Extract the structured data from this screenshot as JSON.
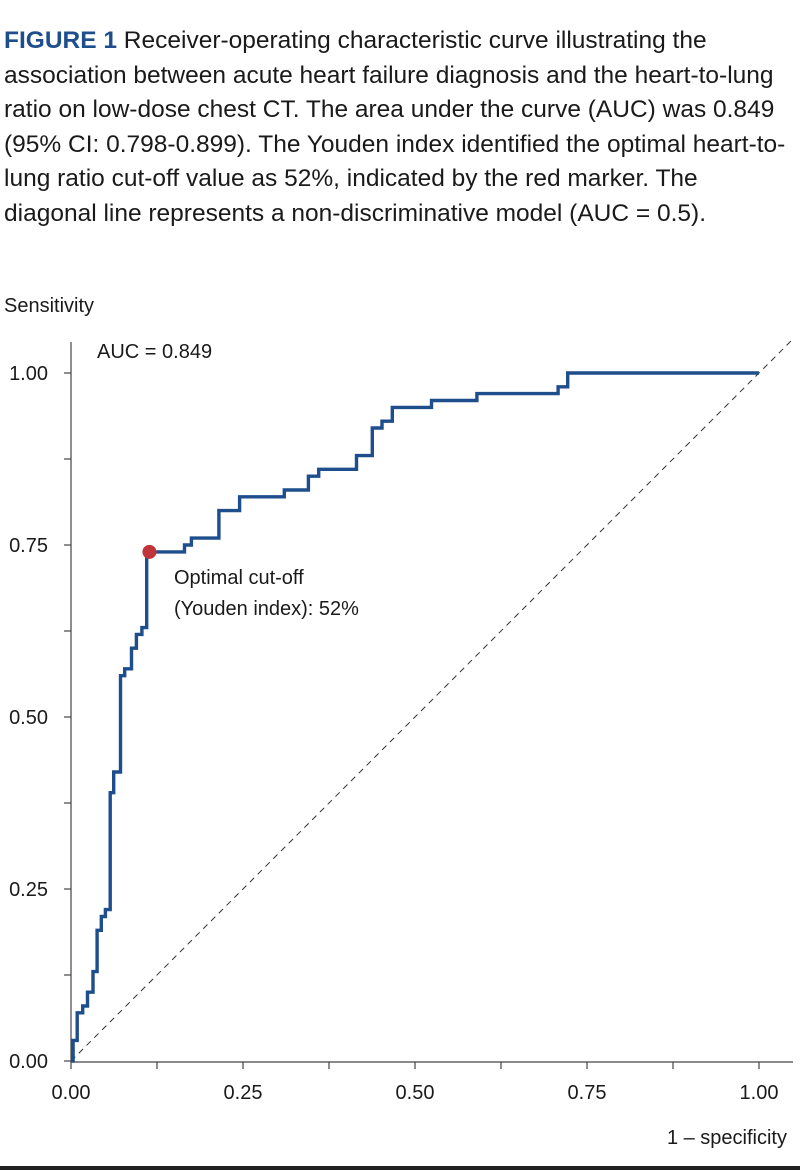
{
  "caption": {
    "label": "FIGURE 1",
    "text": " Receiver-operating characteristic curve illustrating the association between acute heart failure diagnosis and the heart-to-lung ratio on low-dose chest CT. The area under the curve (AUC) was 0.849 (95% CI: 0.798-0.899). The Youden index identified the optimal heart-to-lung ratio cut-off value as 52%, indicated by the red marker. The diagonal line represents a non-discriminative model (AUC = 0.5)."
  },
  "chart_data": {
    "type": "line",
    "ylabel": "Sensitivity",
    "xlabel": "1 – specificity",
    "xlim": [
      0,
      1
    ],
    "ylim": [
      0,
      1
    ],
    "x_ticks": [
      "0.00",
      "0.25",
      "0.50",
      "0.75",
      "1.00"
    ],
    "y_ticks": [
      "0.00",
      "0.25",
      "0.50",
      "0.75",
      "1.00"
    ],
    "grid": false,
    "annotations": {
      "auc": "AUC = 0.849",
      "cutoff_line1": "Optimal cut-off",
      "cutoff_line2": "(Youden index): 52%"
    },
    "series": [
      {
        "color": "#1f4e8c",
        "step": true,
        "x": [
          0.0,
          0.003,
          0.003,
          0.009,
          0.009,
          0.017,
          0.017,
          0.024,
          0.024,
          0.032,
          0.032,
          0.038,
          0.038,
          0.044,
          0.044,
          0.05,
          0.05,
          0.057,
          0.057,
          0.062,
          0.062,
          0.072,
          0.072,
          0.078,
          0.078,
          0.088,
          0.088,
          0.095,
          0.095,
          0.103,
          0.103,
          0.11,
          0.11,
          0.114,
          0.114,
          0.165,
          0.165,
          0.175,
          0.175,
          0.215,
          0.215,
          0.245,
          0.245,
          0.31,
          0.31,
          0.345,
          0.345,
          0.36,
          0.36,
          0.415,
          0.415,
          0.438,
          0.438,
          0.452,
          0.452,
          0.467,
          0.467,
          0.524,
          0.524,
          0.59,
          0.59,
          0.708,
          0.708,
          0.722,
          0.722,
          1.0
        ],
        "y": [
          0.0,
          0.0,
          0.03,
          0.03,
          0.07,
          0.07,
          0.08,
          0.08,
          0.1,
          0.1,
          0.13,
          0.13,
          0.19,
          0.19,
          0.21,
          0.21,
          0.22,
          0.22,
          0.39,
          0.39,
          0.42,
          0.42,
          0.56,
          0.56,
          0.57,
          0.57,
          0.6,
          0.6,
          0.62,
          0.62,
          0.63,
          0.63,
          0.74,
          0.74,
          0.74,
          0.74,
          0.75,
          0.75,
          0.76,
          0.76,
          0.8,
          0.8,
          0.82,
          0.82,
          0.83,
          0.83,
          0.85,
          0.85,
          0.86,
          0.86,
          0.88,
          0.88,
          0.92,
          0.92,
          0.93,
          0.93,
          0.95,
          0.95,
          0.96,
          0.96,
          0.97,
          0.97,
          0.98,
          0.98,
          1.0,
          1.0
        ]
      },
      {
        "color": "#333333",
        "dashed": true,
        "x": [
          0,
          1.05
        ],
        "y": [
          0,
          1.05
        ]
      }
    ],
    "marker": {
      "x": 0.114,
      "y": 0.74,
      "color": "#c0353a"
    }
  }
}
